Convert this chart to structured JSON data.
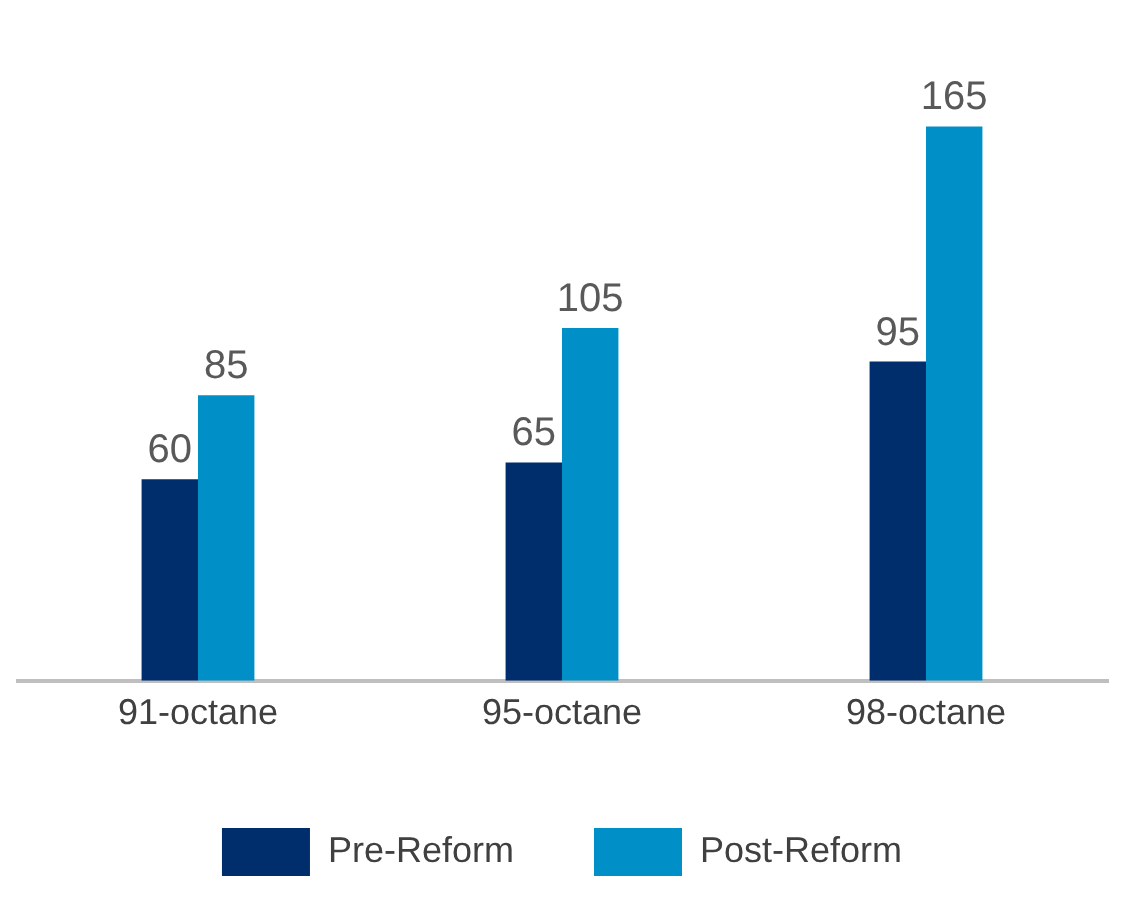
{
  "chart_data": {
    "type": "bar",
    "categories": [
      "91-octane",
      "95-octane",
      "98-octane"
    ],
    "series": [
      {
        "name": "Pre-Reform",
        "color": "#002d6c",
        "values": [
          60,
          65,
          95
        ]
      },
      {
        "name": "Post-Reform",
        "color": "#008fc6",
        "values": [
          85,
          105,
          165
        ]
      }
    ],
    "data_labels": true,
    "legend": "bottom"
  }
}
